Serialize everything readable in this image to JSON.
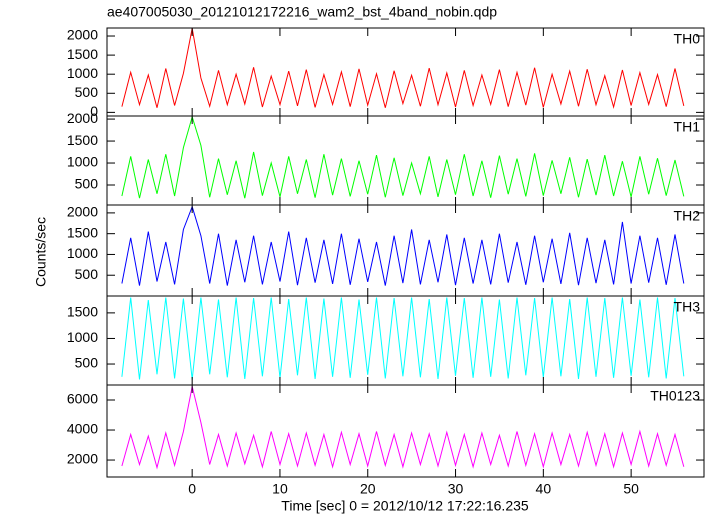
{
  "chart_data": [
    {
      "type": "line",
      "title": "ae407005030_20121012172216_wam2_bst_4band_nobin.qdp",
      "xlim": [
        -9.7,
        58.3
      ],
      "xticks": [
        0,
        10,
        20,
        30,
        40,
        50
      ],
      "ylim": [
        -95,
        2210
      ],
      "yticks": [
        0,
        500,
        1000,
        1500,
        2000
      ],
      "x": [
        -8,
        -7,
        -6,
        -5,
        -4,
        -3,
        -2,
        -1,
        0,
        1,
        2,
        3,
        4,
        5,
        6,
        7,
        8,
        9,
        10,
        11,
        12,
        13,
        14,
        15,
        16,
        17,
        18,
        19,
        20,
        21,
        22,
        23,
        24,
        25,
        26,
        27,
        28,
        29,
        30,
        31,
        32,
        33,
        34,
        35,
        36,
        37,
        38,
        39,
        40,
        41,
        42,
        43,
        44,
        45,
        46,
        47,
        48,
        49,
        50,
        51,
        52,
        53,
        54,
        55,
        56
      ],
      "series": [
        {
          "name": "TH0",
          "color": "#ff0000",
          "values": [
            150,
            1050,
            200,
            980,
            120,
            1150,
            180,
            1020,
            2200,
            900,
            160,
            1100,
            200,
            1000,
            220,
            1180,
            140,
            950,
            200,
            1080,
            170,
            1120,
            130,
            990,
            210,
            1060,
            150,
            1140,
            190,
            1010,
            120,
            1090,
            230,
            970,
            160,
            1160,
            200,
            1030,
            140,
            1100,
            180,
            980,
            210,
            1120,
            150,
            1050,
            190,
            1170,
            130,
            1000,
            220,
            1080,
            160,
            1130,
            200,
            960,
            140,
            1110,
            180,
            1040,
            210,
            990,
            150,
            1150,
            170
          ]
        }
      ]
    },
    {
      "type": "line",
      "xlim": [
        -9.7,
        58.3
      ],
      "xticks": [
        0,
        10,
        20,
        30,
        40,
        50
      ],
      "ylim": [
        45,
        2070
      ],
      "yticks": [
        500,
        1000,
        1500,
        2000
      ],
      "x": [
        -8,
        -7,
        -6,
        -5,
        -4,
        -3,
        -2,
        -1,
        0,
        1,
        2,
        3,
        4,
        5,
        6,
        7,
        8,
        9,
        10,
        11,
        12,
        13,
        14,
        15,
        16,
        17,
        18,
        19,
        20,
        21,
        22,
        23,
        24,
        25,
        26,
        27,
        28,
        29,
        30,
        31,
        32,
        33,
        34,
        35,
        36,
        37,
        38,
        39,
        40,
        41,
        42,
        43,
        44,
        45,
        46,
        47,
        48,
        49,
        50,
        51,
        52,
        53,
        54,
        55,
        56
      ],
      "series": [
        {
          "name": "TH1",
          "color": "#00ff00",
          "values": [
            250,
            1150,
            200,
            1080,
            300,
            1200,
            250,
            1350,
            2050,
            1400,
            220,
            1100,
            280,
            1050,
            200,
            1250,
            260,
            1000,
            230,
            1150,
            300,
            1080,
            210,
            1200,
            270,
            1100,
            240,
            1050,
            290,
            1180,
            220,
            1120,
            260,
            1000,
            300,
            1150,
            230,
            1080,
            280,
            1200,
            250,
            1050,
            210,
            1170,
            290,
            1100,
            240,
            1220,
            260,
            1060,
            300,
            1130,
            220,
            1090,
            270,
            1180,
            250,
            1040,
            230,
            1150,
            290,
            1110,
            260,
            1070,
            240
          ]
        }
      ]
    },
    {
      "type": "line",
      "ylabel": "Counts/sec",
      "xlim": [
        -9.7,
        58.3
      ],
      "xticks": [
        0,
        10,
        20,
        30,
        40,
        50
      ],
      "ylim": [
        0,
        2190
      ],
      "yticks": [
        500,
        1000,
        1500,
        2000
      ],
      "x": [
        -8,
        -7,
        -6,
        -5,
        -4,
        -3,
        -2,
        -1,
        0,
        1,
        2,
        3,
        4,
        5,
        6,
        7,
        8,
        9,
        10,
        11,
        12,
        13,
        14,
        15,
        16,
        17,
        18,
        19,
        20,
        21,
        22,
        23,
        24,
        25,
        26,
        27,
        28,
        29,
        30,
        31,
        32,
        33,
        34,
        35,
        36,
        37,
        38,
        39,
        40,
        41,
        42,
        43,
        44,
        45,
        46,
        47,
        48,
        49,
        50,
        51,
        52,
        53,
        54,
        55,
        56
      ],
      "series": [
        {
          "name": "TH2",
          "color": "#0000ff",
          "values": [
            300,
            1400,
            250,
            1550,
            350,
            1300,
            280,
            1600,
            2150,
            1450,
            300,
            1500,
            250,
            1350,
            330,
            1450,
            280,
            1300,
            350,
            1550,
            260,
            1400,
            320,
            1350,
            290,
            1500,
            270,
            1380,
            340,
            1300,
            250,
            1450,
            310,
            1600,
            280,
            1350,
            330,
            1480,
            260,
            1400,
            300,
            1350,
            280,
            1500,
            320,
            1300,
            270,
            1450,
            330,
            1380,
            290,
            1520,
            260,
            1400,
            310,
            1350,
            280,
            1780,
            300,
            1450,
            320,
            1400,
            270,
            1480,
            300
          ]
        }
      ]
    },
    {
      "type": "line",
      "xlim": [
        -9.7,
        58.3
      ],
      "xticks": [
        0,
        10,
        20,
        30,
        40,
        50
      ],
      "ylim": [
        90,
        1830
      ],
      "yticks": [
        500,
        1000,
        1500
      ],
      "x": [
        -8,
        -7,
        -6,
        -5,
        -4,
        -3,
        -2,
        -1,
        0,
        1,
        2,
        3,
        4,
        5,
        6,
        7,
        8,
        9,
        10,
        11,
        12,
        13,
        14,
        15,
        16,
        17,
        18,
        19,
        20,
        21,
        22,
        23,
        24,
        25,
        26,
        27,
        28,
        29,
        30,
        31,
        32,
        33,
        34,
        35,
        36,
        37,
        38,
        39,
        40,
        41,
        42,
        43,
        44,
        45,
        46,
        47,
        48,
        49,
        50,
        51,
        52,
        53,
        54,
        55,
        56
      ],
      "series": [
        {
          "name": "TH3",
          "color": "#00ffff",
          "values": [
            250,
            1800,
            200,
            1750,
            300,
            1800,
            220,
            1780,
            200,
            1800,
            300,
            1760,
            240,
            1800,
            210,
            1790,
            260,
            1800,
            230,
            1770,
            280,
            1800,
            210,
            1780,
            250,
            1800,
            230,
            1760,
            290,
            1800,
            220,
            1790,
            260,
            1800,
            240,
            1770,
            210,
            1800,
            270,
            1790,
            230,
            1800,
            250,
            1760,
            220,
            1800,
            280,
            1790,
            240,
            1800,
            260,
            1770,
            210,
            1800,
            250,
            1790,
            230,
            1800,
            270,
            1760,
            240,
            1800,
            220,
            1790,
            260
          ]
        }
      ]
    },
    {
      "type": "line",
      "xlabel": "Time [sec] 0 = 2012/10/12 17:22:16.235",
      "xlim": [
        -9.7,
        58.3
      ],
      "xticks": [
        0,
        10,
        20,
        30,
        40,
        50
      ],
      "ylim": [
        870,
        7000
      ],
      "yticks": [
        2000,
        4000,
        6000
      ],
      "x": [
        -8,
        -7,
        -6,
        -5,
        -4,
        -3,
        -2,
        -1,
        0,
        1,
        2,
        3,
        4,
        5,
        6,
        7,
        8,
        9,
        10,
        11,
        12,
        13,
        14,
        15,
        16,
        17,
        18,
        19,
        20,
        21,
        22,
        23,
        24,
        25,
        26,
        27,
        28,
        29,
        30,
        31,
        32,
        33,
        34,
        35,
        36,
        37,
        38,
        39,
        40,
        41,
        42,
        43,
        44,
        45,
        46,
        47,
        48,
        49,
        50,
        51,
        52,
        53,
        54,
        55,
        56
      ],
      "series": [
        {
          "name": "TH0123",
          "color": "#ff00ff",
          "values": [
            1600,
            3700,
            1700,
            3600,
            1500,
            3800,
            1650,
            3900,
            6900,
            4500,
            1700,
            3700,
            1600,
            3800,
            1750,
            3650,
            1550,
            3900,
            1700,
            3750,
            1600,
            3800,
            1650,
            3700,
            1550,
            3850,
            1700,
            3750,
            1600,
            3900,
            1650,
            3700,
            1550,
            3800,
            1700,
            3750,
            1600,
            3850,
            1650,
            3700,
            1550,
            3800,
            1700,
            3650,
            1600,
            3900,
            1650,
            3750,
            1550,
            3800,
            1700,
            3700,
            1600,
            3850,
            1650,
            3750,
            1550,
            3800,
            1700,
            3900,
            1600,
            3750,
            1650,
            3700,
            1550
          ]
        }
      ]
    }
  ]
}
